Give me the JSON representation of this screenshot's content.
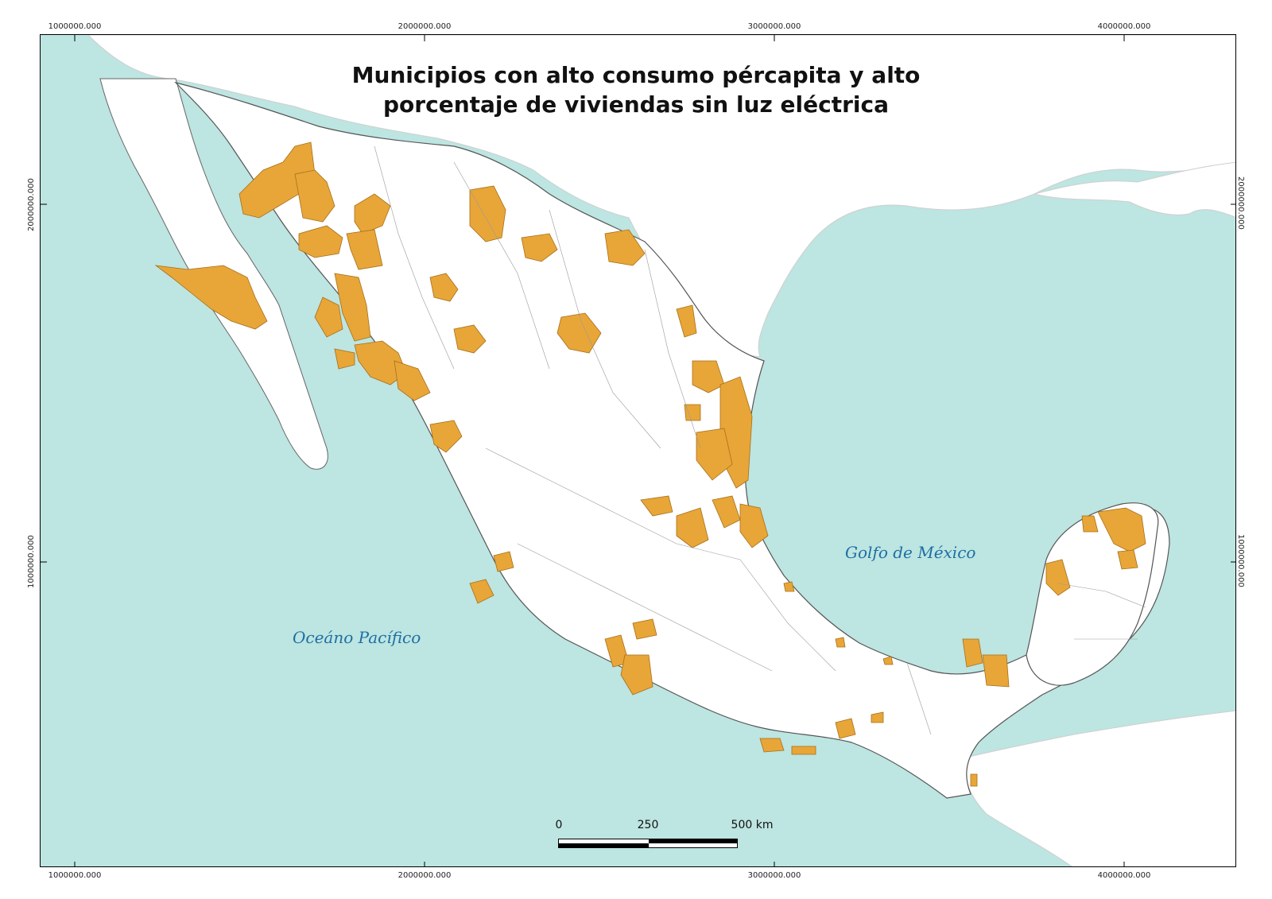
{
  "title": {
    "line1": "Municipios con alto consumo pércapita y alto",
    "line2": "porcentaje de viviendas sin luz eléctrica"
  },
  "coordinates": {
    "x_ticks": [
      "1000000.000",
      "2000000.000",
      "3000000.000",
      "4000000.000"
    ],
    "y_ticks": [
      "2000000.000",
      "1000000.000"
    ]
  },
  "labels": {
    "gulf": "Golfo de México",
    "pacific": "Oceáno Pacífico"
  },
  "scale_bar": {
    "labels": [
      "0",
      "250",
      "500 km"
    ]
  },
  "colors": {
    "water": "#bde5e1",
    "land": "#ffffff",
    "highlight": "#e8a638",
    "border": "#555555",
    "sea_label": "#1d6fa3"
  }
}
